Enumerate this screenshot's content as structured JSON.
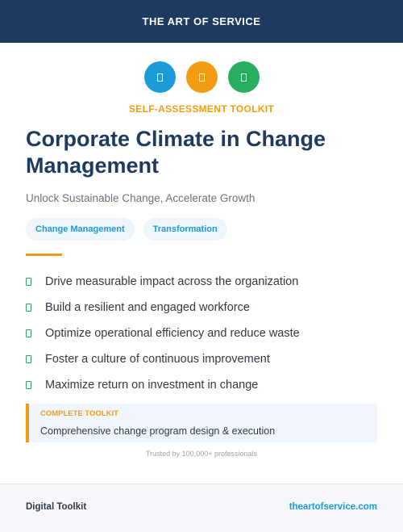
{
  "header": {
    "brand": "THE ART OF SERVICE"
  },
  "icons": [
    {
      "name": "icon-badge-1",
      "color": "#1c9bd6"
    },
    {
      "name": "icon-badge-2",
      "color": "#f39c12"
    },
    {
      "name": "icon-badge-3",
      "color": "#27ae60"
    }
  ],
  "kicker": "SELF-ASSESSMENT TOOLKIT",
  "title": "Corporate Climate in Change Management",
  "subtitle": "Unlock Sustainable Change, Accelerate Growth",
  "tags": [
    "Change Management",
    "Transformation"
  ],
  "benefits": [
    "Drive measurable impact across the organization",
    "Build a resilient and engaged workforce",
    "Optimize operational efficiency and reduce waste",
    "Foster a culture of continuous improvement",
    "Maximize return on investment in change"
  ],
  "callout": {
    "label": "COMPLETE TOOLKIT",
    "text": "Comprehensive change program design & execution"
  },
  "trusted": "Trusted by 100,000+ professionals",
  "footer": {
    "left": "Digital Toolkit",
    "right": "theartofservice.com"
  },
  "colors": {
    "navy": "#1f3a5f",
    "orange": "#f39c12",
    "blue": "#1c9bd6",
    "green": "#27ae60"
  }
}
